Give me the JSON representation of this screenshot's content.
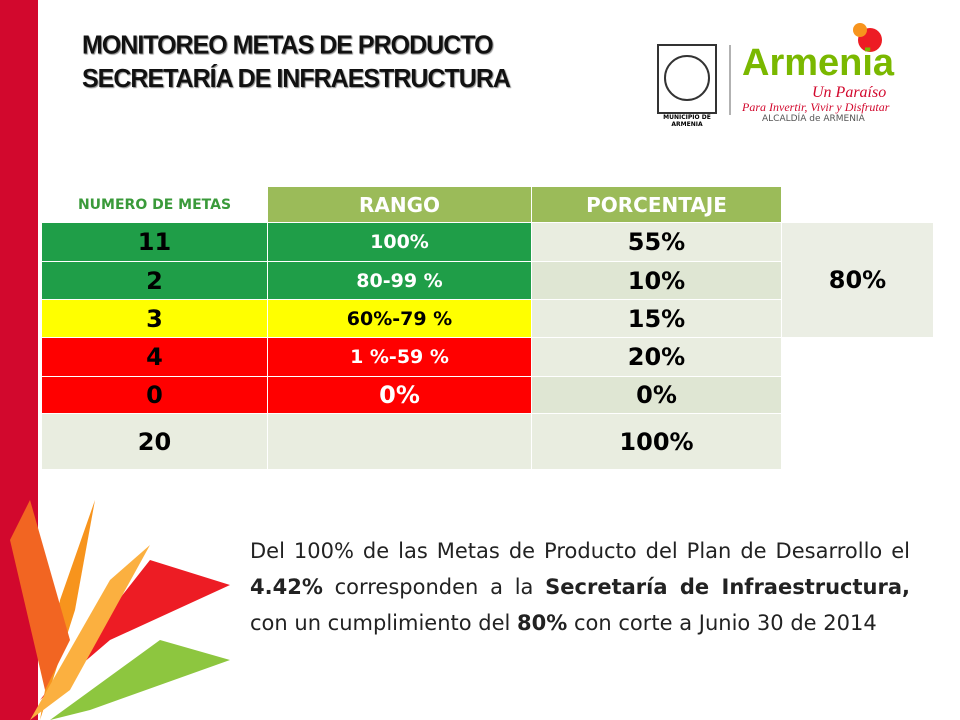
{
  "header": {
    "title": [
      "MONITOREO METAS DE PRODUCTO",
      "SECRETARÍA DE INFRAESTRUCTURA"
    ]
  },
  "logo": {
    "seal": "MUNICIPIO DE ARMENIA",
    "brand": "Armenia",
    "slogan": "Un Paraíso",
    "tagline": "Para Invertir, Vivir y Disfrutar",
    "office": "ALCALDÍA de ARMENIA"
  },
  "table": {
    "headers": [
      "NUMERO DE METAS",
      "RANGO",
      "PORCENTAJE"
    ],
    "rows": [
      {
        "metas": "11",
        "rango": "100%",
        "porcentaje": "55%"
      },
      {
        "metas": "2",
        "rango": "80-99  %",
        "porcentaje": "10%"
      },
      {
        "metas": "3",
        "rango": "60%-79 %",
        "porcentaje": "15%"
      },
      {
        "metas": "4",
        "rango": "1  %-59 %",
        "porcentaje": "20%"
      },
      {
        "metas": "0",
        "rango": "0%",
        "porcentaje": "0%"
      },
      {
        "metas": "20",
        "porcentaje": "100%"
      }
    ],
    "cumplimiento": "80%"
  },
  "paragraph": [
    "Del 100% de las Metas de Producto del Plan de Desarrollo el ",
    "4.42%",
    " corresponden a la ",
    "Secretaría de Infraestructura,",
    " con un cumplimiento del  ",
    "80%",
    " con corte a Junio 30 de 2014"
  ]
}
